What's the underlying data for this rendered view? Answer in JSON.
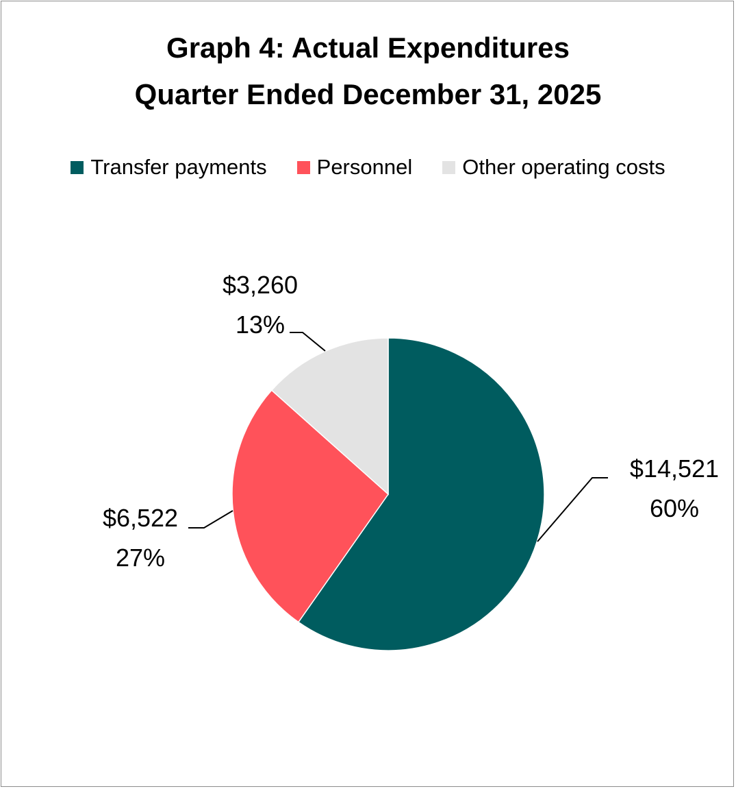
{
  "chart_data": {
    "type": "pie",
    "title": [
      "Graph 4: Actual Expenditures",
      "Quarter Ended December 31, 2025"
    ],
    "legend_placement": "top",
    "slices": [
      {
        "label": "Transfer payments",
        "value": 14521,
        "value_label": "$14,521",
        "percent_label": "60%",
        "color": "#005C5F"
      },
      {
        "label": "Personnel",
        "value": 6522,
        "value_label": "$6,522",
        "percent_label": "27%",
        "color": "#FF525A"
      },
      {
        "label": "Other operating costs",
        "value": 3260,
        "value_label": "$3,260",
        "percent_label": "13%",
        "color": "#E3E3E3"
      }
    ]
  }
}
